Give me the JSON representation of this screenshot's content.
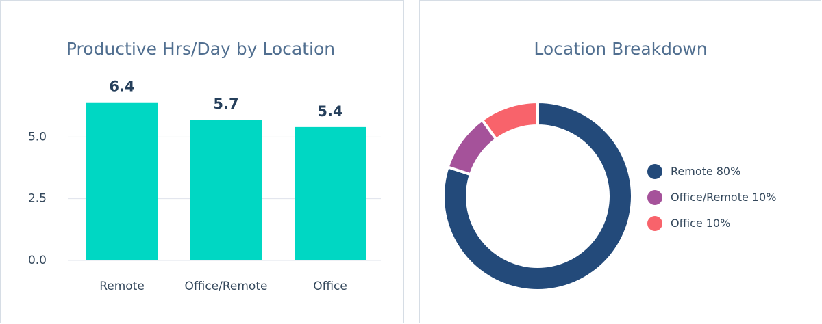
{
  "chart_data": [
    {
      "type": "bar",
      "title": "Productive Hrs/Day by Location",
      "categories": [
        "Remote",
        "Office/Remote",
        "Office"
      ],
      "values": [
        6.4,
        5.7,
        5.4
      ],
      "color": "#00d7c3",
      "ylim": [
        0,
        7.5
      ],
      "yticks": [
        {
          "value": 0,
          "label": "0.0"
        },
        2.5,
        {
          "value": 5,
          "label": "5.0"
        }
      ],
      "grid": true
    },
    {
      "type": "donut",
      "title": "Location Breakdown",
      "categories": [
        "Remote",
        "Office/Remote",
        "Office"
      ],
      "values": [
        80,
        10,
        10
      ],
      "value_labels": [
        "80%",
        "10%",
        "10%"
      ],
      "colors": [
        "#234a7a",
        "#a5529a",
        "#f8636b"
      ],
      "legend": "right"
    }
  ]
}
